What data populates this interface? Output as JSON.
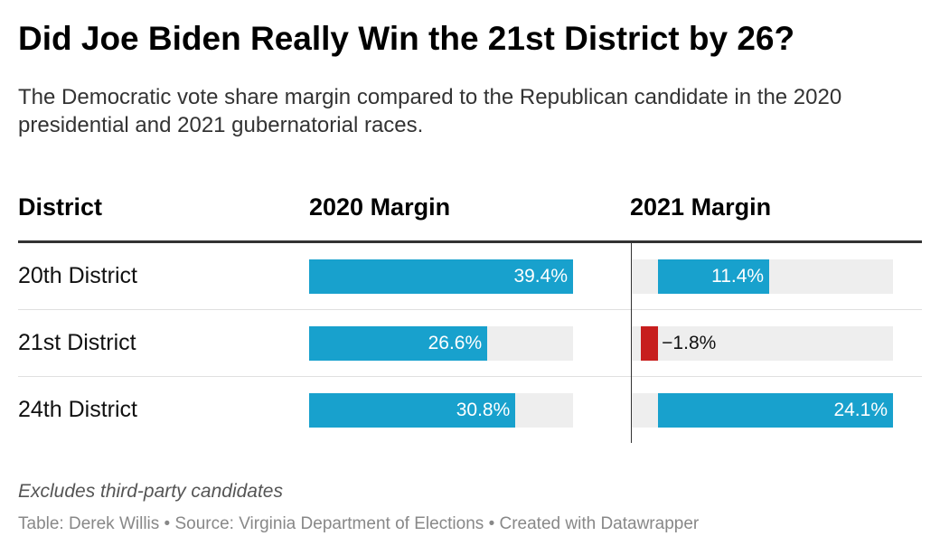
{
  "title": "Did Joe Biden Really Win the 21st District by 26?",
  "subtitle": "The Democratic vote share margin compared to the Republican candidate in the 2020 presidential and 2021 gubernatorial races.",
  "chart_data": {
    "type": "table",
    "columns": [
      "District",
      "2020 Margin",
      "2021 Margin"
    ],
    "categories": [
      "20th District",
      "21st District",
      "24th District"
    ],
    "series": [
      {
        "name": "2020 Margin",
        "values": [
          39.4,
          26.6,
          30.8
        ],
        "range": [
          0,
          39.4
        ]
      },
      {
        "name": "2021 Margin",
        "values": [
          11.4,
          -1.8,
          24.1
        ],
        "range": [
          -2.8,
          24.1
        ]
      }
    ],
    "labels": [
      [
        "39.4%",
        "11.4%"
      ],
      [
        "26.6%",
        "−1.8%"
      ],
      [
        "30.8%",
        "24.1%"
      ]
    ],
    "colors": {
      "positive": "#18a1cd",
      "negative": "#c71e1d",
      "track": "#eeeeee"
    }
  },
  "notes": "Excludes third-party candidates",
  "footer": "Table: Derek Willis • Source: Virginia Department of Elections • Created with Datawrapper"
}
